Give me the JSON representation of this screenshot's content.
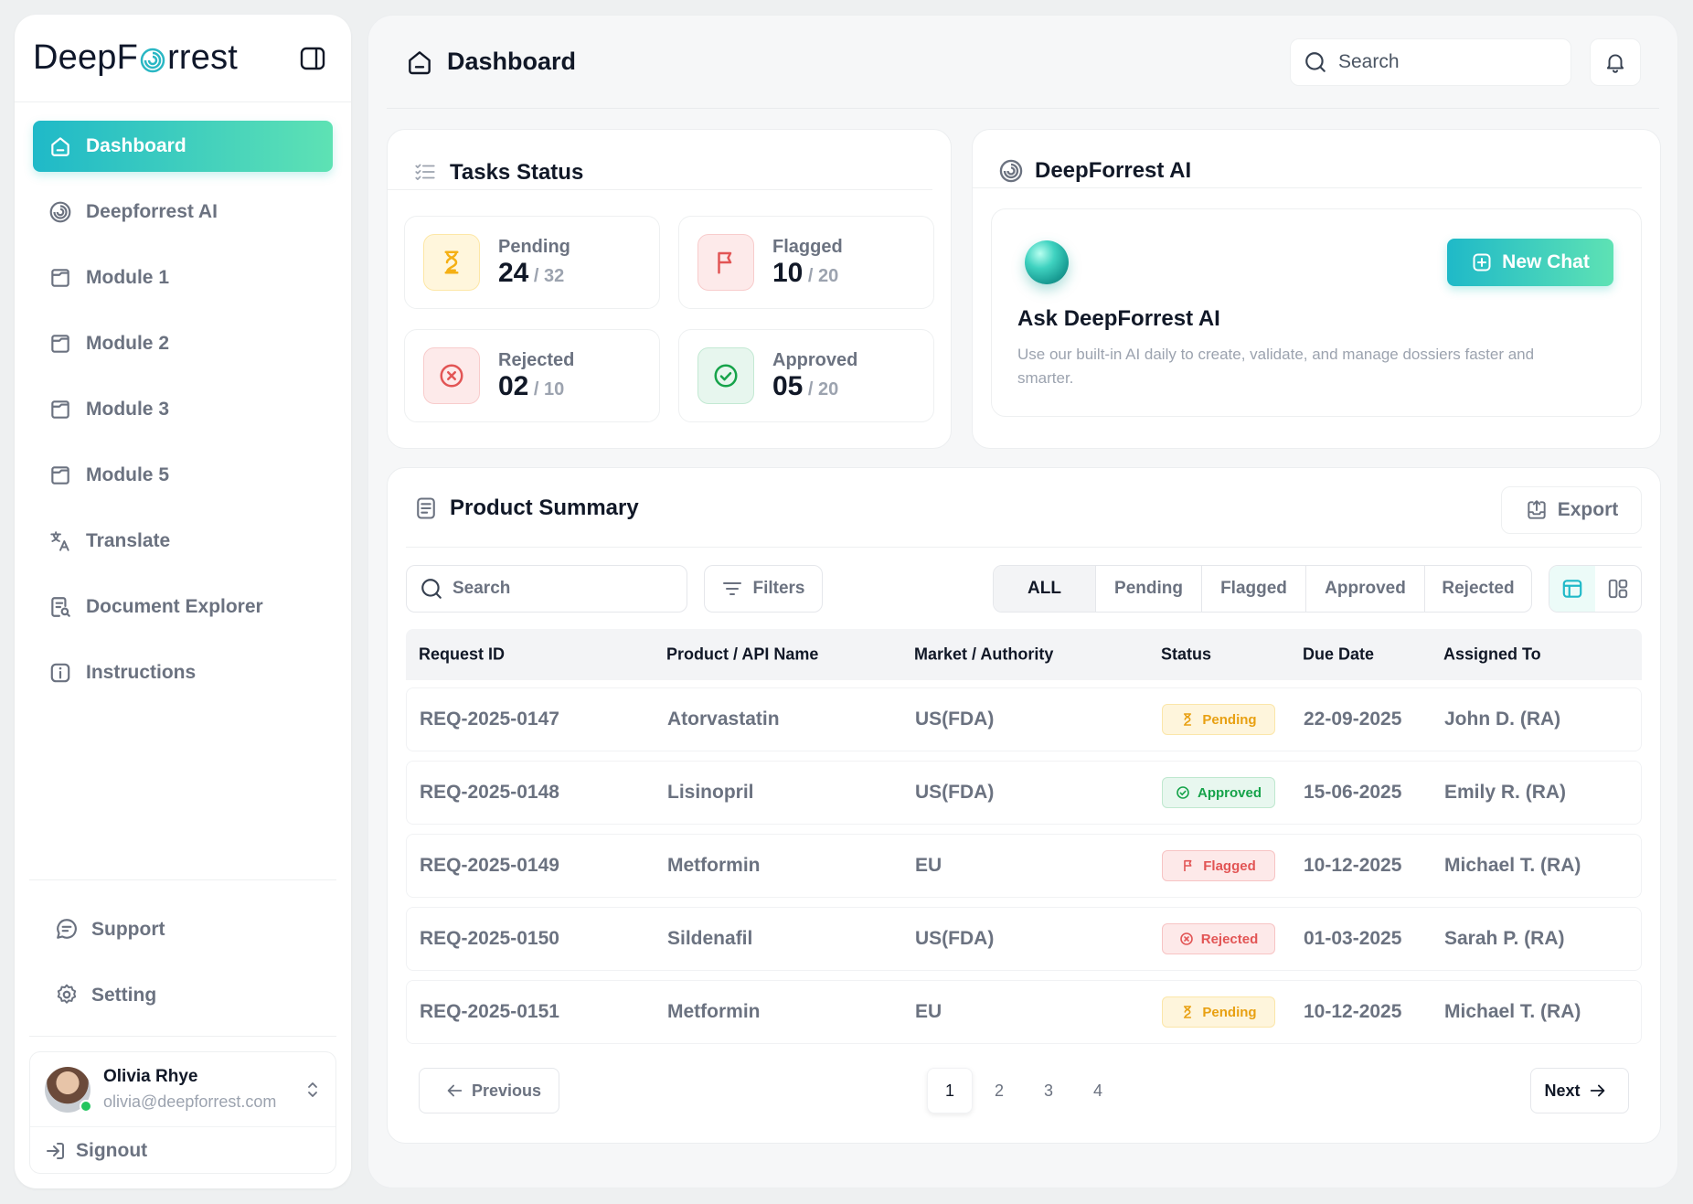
{
  "brand": {
    "logo_prefix": "DeepF",
    "logo_suffix": "rrest"
  },
  "sidebar": {
    "items": [
      {
        "label": "Dashboard",
        "icon": "home-icon",
        "active": true
      },
      {
        "label": "Deepforrest AI",
        "icon": "spiral-icon"
      },
      {
        "label": "Module 1",
        "icon": "folder-icon"
      },
      {
        "label": "Module 2",
        "icon": "folder-icon"
      },
      {
        "label": "Module 3",
        "icon": "folder-icon"
      },
      {
        "label": "Module 5",
        "icon": "folder-icon"
      },
      {
        "label": "Translate",
        "icon": "translate-icon"
      },
      {
        "label": "Document Explorer",
        "icon": "document-search-icon"
      },
      {
        "label": "Instructions",
        "icon": "info-icon"
      }
    ],
    "support_label": "Support",
    "setting_label": "Setting",
    "user": {
      "name": "Olivia Rhye",
      "email": "olivia@deepforrest.com"
    },
    "signout_label": "Signout"
  },
  "header": {
    "title": "Dashboard",
    "search_placeholder": "Search"
  },
  "tasks": {
    "title": "Tasks Status",
    "stats": [
      {
        "label": "Pending",
        "value": "24",
        "total": " / 32",
        "color": "#f5b014"
      },
      {
        "label": "Flagged",
        "value": "10",
        "total": " / 20",
        "color": "#e25555"
      },
      {
        "label": "Rejected",
        "value": "02",
        "total": " / 10",
        "color": "#e25555"
      },
      {
        "label": "Approved",
        "value": "05",
        "total": " / 20",
        "color": "#16a34a"
      }
    ]
  },
  "ai": {
    "title": "DeepForrest AI",
    "heading": "Ask DeepForrest AI",
    "description": "Use our built-in AI daily to create, validate, and manage dossiers faster and smarter.",
    "new_chat_label": "New Chat"
  },
  "summary": {
    "title": "Product Summary",
    "export_label": "Export",
    "search_placeholder": "Search",
    "filters_label": "Filters",
    "tabs": [
      "ALL",
      "Pending",
      "Flagged",
      "Approved",
      "Rejected"
    ],
    "columns": [
      "Request ID",
      "Product / API Name",
      "Market / Authority",
      "Status",
      "Due Date",
      "Assigned To"
    ],
    "rows": [
      {
        "id": "REQ-2025-0147",
        "product": "Atorvastatin",
        "market": "US(FDA)",
        "status": "Pending",
        "due": "22-09-2025",
        "assigned": "John D. (RA)"
      },
      {
        "id": "REQ-2025-0148",
        "product": "Lisinopril",
        "market": "US(FDA)",
        "status": "Approved",
        "due": "15-06-2025",
        "assigned": "Emily R. (RA)"
      },
      {
        "id": "REQ-2025-0149",
        "product": "Metformin",
        "market": "EU",
        "status": "Flagged",
        "due": "10-12-2025",
        "assigned": "Michael T. (RA)"
      },
      {
        "id": "REQ-2025-0150",
        "product": "Sildenafil",
        "market": "US(FDA)",
        "status": "Rejected",
        "due": "01-03-2025",
        "assigned": "Sarah P. (RA)"
      },
      {
        "id": "REQ-2025-0151",
        "product": "Metformin",
        "market": "EU",
        "status": "Pending",
        "due": "10-12-2025",
        "assigned": "Michael T. (RA)"
      }
    ],
    "pagination": {
      "previous_label": "Previous",
      "next_label": "Next",
      "pages": [
        "1",
        "2",
        "3",
        "4"
      ],
      "current": "1"
    }
  },
  "colors": {
    "accent_start": "#1fb9c8",
    "accent_end": "#5ee2b4"
  }
}
